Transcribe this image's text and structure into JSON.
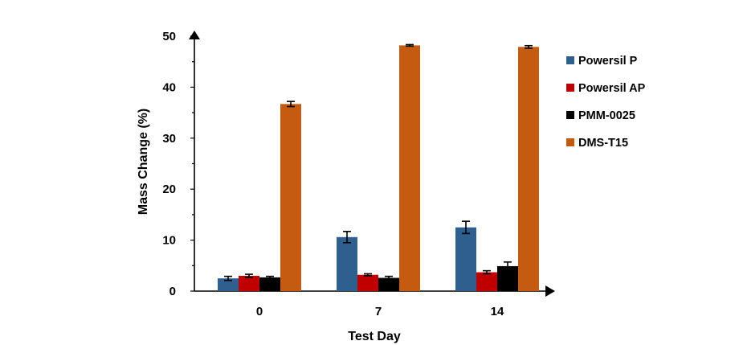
{
  "chart_data": {
    "type": "bar",
    "title": "",
    "xlabel": "Test Day",
    "ylabel": "Mass Change (%)",
    "categories": [
      "0",
      "7",
      "14"
    ],
    "ylim": [
      0,
      50
    ],
    "yticks": [
      "0",
      "10",
      "20",
      "30",
      "40",
      "50"
    ],
    "grid": false,
    "legend_position": "right",
    "series": [
      {
        "name": "Powersil P",
        "color": "#2e5f8e",
        "values": [
          2.5,
          10.6,
          12.5
        ],
        "errors": [
          0.4,
          1.1,
          1.2
        ]
      },
      {
        "name": "Powersil AP",
        "color": "#c00000",
        "values": [
          3.0,
          3.2,
          3.7
        ],
        "errors": [
          0.3,
          0.2,
          0.3
        ]
      },
      {
        "name": "PMM-0025",
        "color": "#000000",
        "values": [
          2.7,
          2.6,
          4.9
        ],
        "errors": [
          0.2,
          0.3,
          0.8
        ]
      },
      {
        "name": "DMS-T15",
        "color": "#c55a11",
        "values": [
          36.7,
          48.2,
          47.9
        ],
        "errors": [
          0.5,
          0.15,
          0.25
        ]
      }
    ]
  }
}
